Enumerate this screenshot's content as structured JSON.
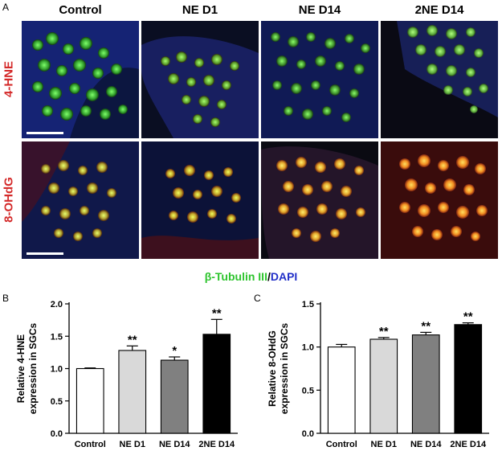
{
  "panel_a": {
    "letter": "A",
    "columns": [
      "Control",
      "NE D1",
      "NE D14",
      "2NE D14"
    ],
    "rows": [
      "4-HNE",
      "8-OHdG"
    ],
    "legend": {
      "green_part": "β-Tubulin III",
      "separator": "/",
      "blue_part": "DAPI"
    },
    "colors": {
      "row_label": "#d42a2a",
      "green_stain": "#2ec42e",
      "blue_stain": "#2230c8"
    }
  },
  "chart_data": [
    {
      "panel": "B",
      "type": "bar",
      "categories": [
        "Control",
        "NE D1",
        "NE D14",
        "2NE D14"
      ],
      "values": [
        1.0,
        1.28,
        1.13,
        1.53
      ],
      "errors": [
        0.01,
        0.07,
        0.05,
        0.23
      ],
      "significance": [
        "",
        "**",
        "*",
        "**"
      ],
      "bar_colors": [
        "#ffffff",
        "#d9d9d9",
        "#808080",
        "#000000"
      ],
      "ylabel": "Relative 4-HNE expression in SGCs",
      "ylim": [
        0,
        2.0
      ],
      "yticks": [
        "0.0",
        "0.5",
        "1.0",
        "1.5",
        "2.0"
      ]
    },
    {
      "panel": "C",
      "type": "bar",
      "categories": [
        "Control",
        "NE D1",
        "NE D14",
        "2NE D14"
      ],
      "values": [
        1.0,
        1.09,
        1.14,
        1.26
      ],
      "errors": [
        0.03,
        0.02,
        0.03,
        0.02
      ],
      "significance": [
        "",
        "**",
        "**",
        "**"
      ],
      "bar_colors": [
        "#ffffff",
        "#d9d9d9",
        "#808080",
        "#000000"
      ],
      "ylabel": "Relative 8-OHdG expression in SGCs",
      "ylim": [
        0,
        1.5
      ],
      "yticks": [
        "0.0",
        "0.5",
        "1.0",
        "1.5"
      ]
    }
  ]
}
